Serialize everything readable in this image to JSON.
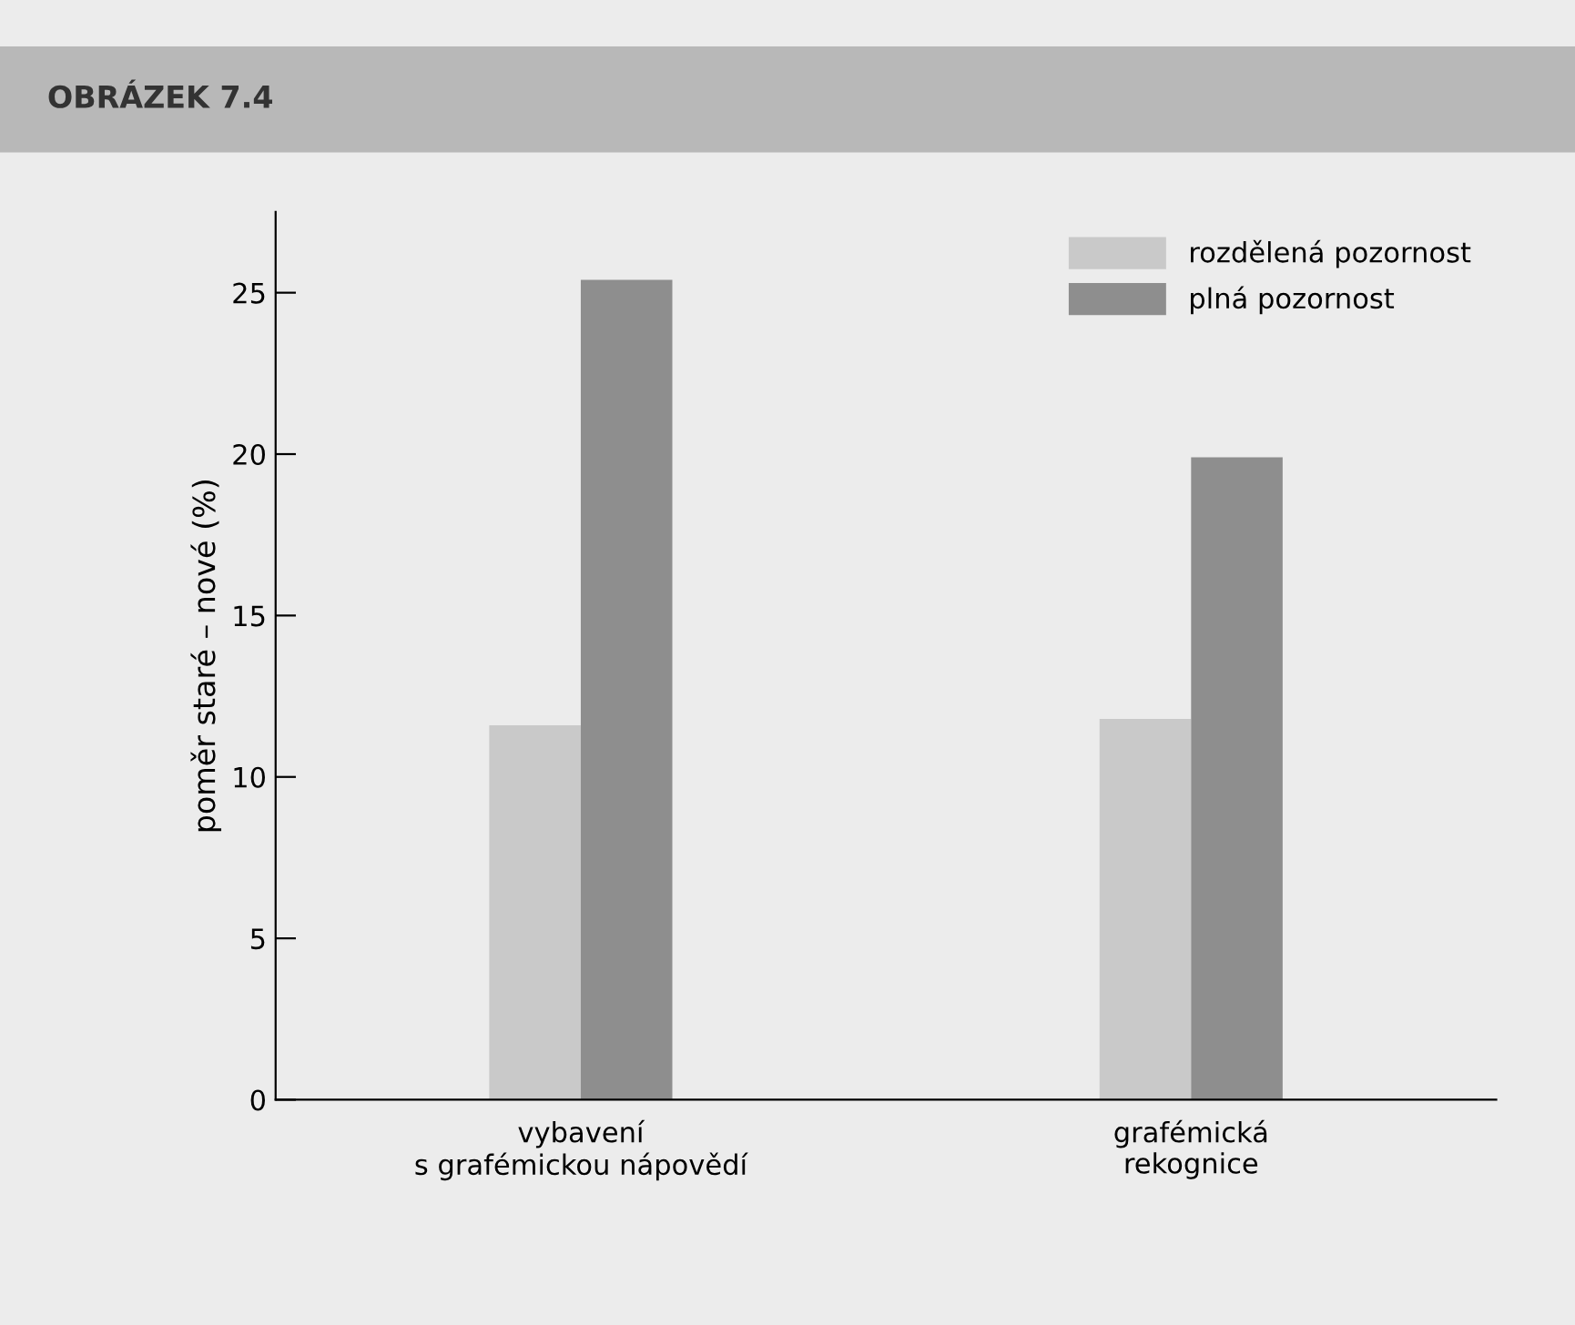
{
  "chart_data": {
    "type": "bar",
    "title": "OBRÁZEK 7.4",
    "ylabel": "poměr staré – nové (%)",
    "categories": [
      "vybavení\ns grafémickou nápovědí",
      "grafémická\nrekognice"
    ],
    "series": [
      {
        "name": "rozdělená pozornost",
        "color": "#c9c9c9",
        "values": [
          11.6,
          11.8
        ]
      },
      {
        "name": "plná pozornost",
        "color": "#8e8e8e",
        "values": [
          25.4,
          19.9
        ]
      }
    ],
    "ylim": [
      0,
      27.5
    ],
    "yticks": [
      0,
      5,
      10,
      15,
      20,
      25
    ],
    "grid": false,
    "legend": "top right"
  }
}
